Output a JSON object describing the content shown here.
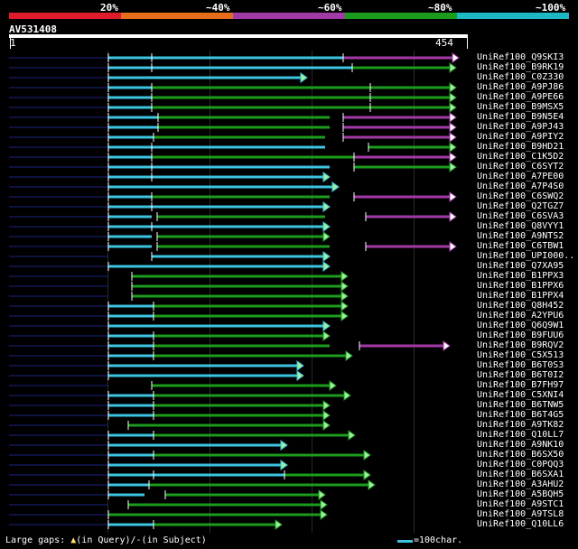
{
  "scale": {
    "labels": [
      "20%",
      "~40%",
      "~60%",
      "~80%",
      "~100%"
    ],
    "colors": [
      "#e01c2c",
      "#e66d1c",
      "#a23aa6",
      "#1c9c1c",
      "#1eb8c4"
    ]
  },
  "query": {
    "id": "AV531408",
    "start": "1",
    "end": "454"
  },
  "hits": [
    "UniRef100_Q9SKI3",
    "UniRef100_B9RK19",
    "UniRef100_C0Z330",
    "UniRef100_A9PJ86",
    "UniRef100_A9PE66",
    "UniRef100_B9MSX5",
    "UniRef100_B9N5E4",
    "UniRef100_A9PJ43",
    "UniRef100_A9PIY2",
    "UniRef100_B9HD21",
    "UniRef100_C1K5D2",
    "UniRef100_C6SYT2",
    "UniRef100_A7PE00",
    "UniRef100_A7P4S0",
    "UniRef100_C6SWQ2",
    "UniRef100_Q2TGZ7",
    "UniRef100_C6SVA3",
    "UniRef100_Q8VYY1",
    "UniRef100_A9NTS2",
    "UniRef100_C6TBW1",
    "UniRef100_UPI000..",
    "UniRef100_Q7XA95",
    "UniRef100_B1PPX3",
    "UniRef100_B1PPX6",
    "UniRef100_B1PPX4",
    "UniRef100_Q8H452",
    "UniRef100_A2YPU6",
    "UniRef100_Q6Q9W1",
    "UniRef100_B9FUU6",
    "UniRef100_B9RQV2",
    "UniRef100_C5X513",
    "UniRef100_B6T0S3",
    "UniRef100_B6T0I2",
    "UniRef100_B7FH97",
    "UniRef100_C5XNI4",
    "UniRef100_B6TNW5",
    "UniRef100_B6T4G5",
    "UniRef100_A9TK82",
    "UniRef100_Q10LL7",
    "UniRef100_A9NK10",
    "UniRef100_B6SX50",
    "UniRef100_C0PQQ3",
    "UniRef100_B6SXA1",
    "UniRef100_A3AHU2",
    "UniRef100_A5BQH5",
    "UniRef100_A9STC1",
    "UniRef100_A9TSL8",
    "UniRef100_Q10LL6"
  ],
  "footer": {
    "gaps_label": "Large gaps: ",
    "gap_query": "(in Query)/",
    "gap_subject": "(in Subject)",
    "legend": "=100char."
  }
}
